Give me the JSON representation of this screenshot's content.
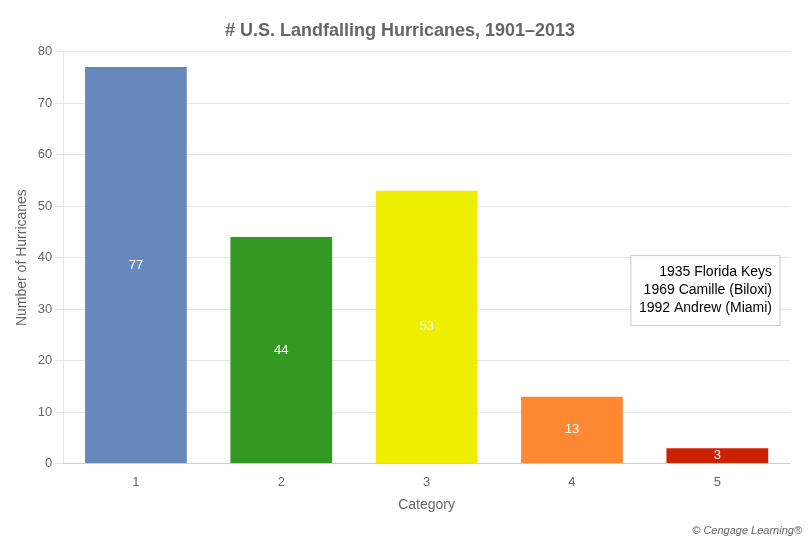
{
  "chart_data": {
    "type": "bar",
    "title": "# U.S. Landfalling Hurricanes, 1901–2013",
    "categories": [
      "1",
      "2",
      "3",
      "4",
      "5"
    ],
    "values": [
      77,
      44,
      53,
      13,
      3
    ],
    "colors": [
      "#6688bb",
      "#339922",
      "#eeee00",
      "#ff8833",
      "#cc2200"
    ],
    "xlabel": "Category",
    "ylabel": "Number of Hurricanes",
    "ylim": [
      0,
      80
    ],
    "yticks": [
      0,
      10,
      20,
      30,
      40,
      50,
      60,
      70,
      80
    ],
    "grid": true,
    "data_labels": true,
    "annotations": [
      [
        "1935 Florida Keys",
        "1969 Camille (Biloxi)",
        "1992 Andrew (Miami)"
      ],
      [
        "© Cengage Learning®"
      ]
    ]
  }
}
